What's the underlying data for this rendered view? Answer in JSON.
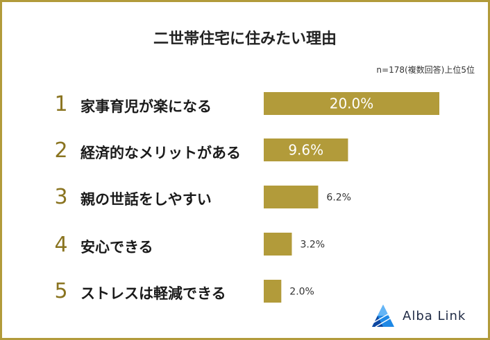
{
  "chart_data": {
    "type": "bar",
    "orientation": "horizontal",
    "title": "二世帯住宅に住みたい理由",
    "note": "n=178(複数回答)上位5位",
    "ranks": [
      "1",
      "2",
      "3",
      "4",
      "5"
    ],
    "categories": [
      "家事育児が楽になる",
      "経済的なメリットがある",
      "親の世話をしやすい",
      "安心できる",
      "ストレスは軽減できる"
    ],
    "values": [
      20.0,
      9.6,
      6.2,
      3.2,
      2.0
    ],
    "value_labels": [
      "20.0%",
      "9.6%",
      "6.2%",
      "3.2%",
      "2.0%"
    ],
    "xlim": [
      0,
      20.0
    ],
    "grid": false,
    "legend": "none",
    "colors": {
      "bar": "#b29b3a",
      "border": "#b29b3a",
      "rank": "#8a7420",
      "logo": "#1e88e5"
    }
  },
  "logo": {
    "icon": "alba-link-triangle-icon",
    "text": "Alba Link"
  }
}
